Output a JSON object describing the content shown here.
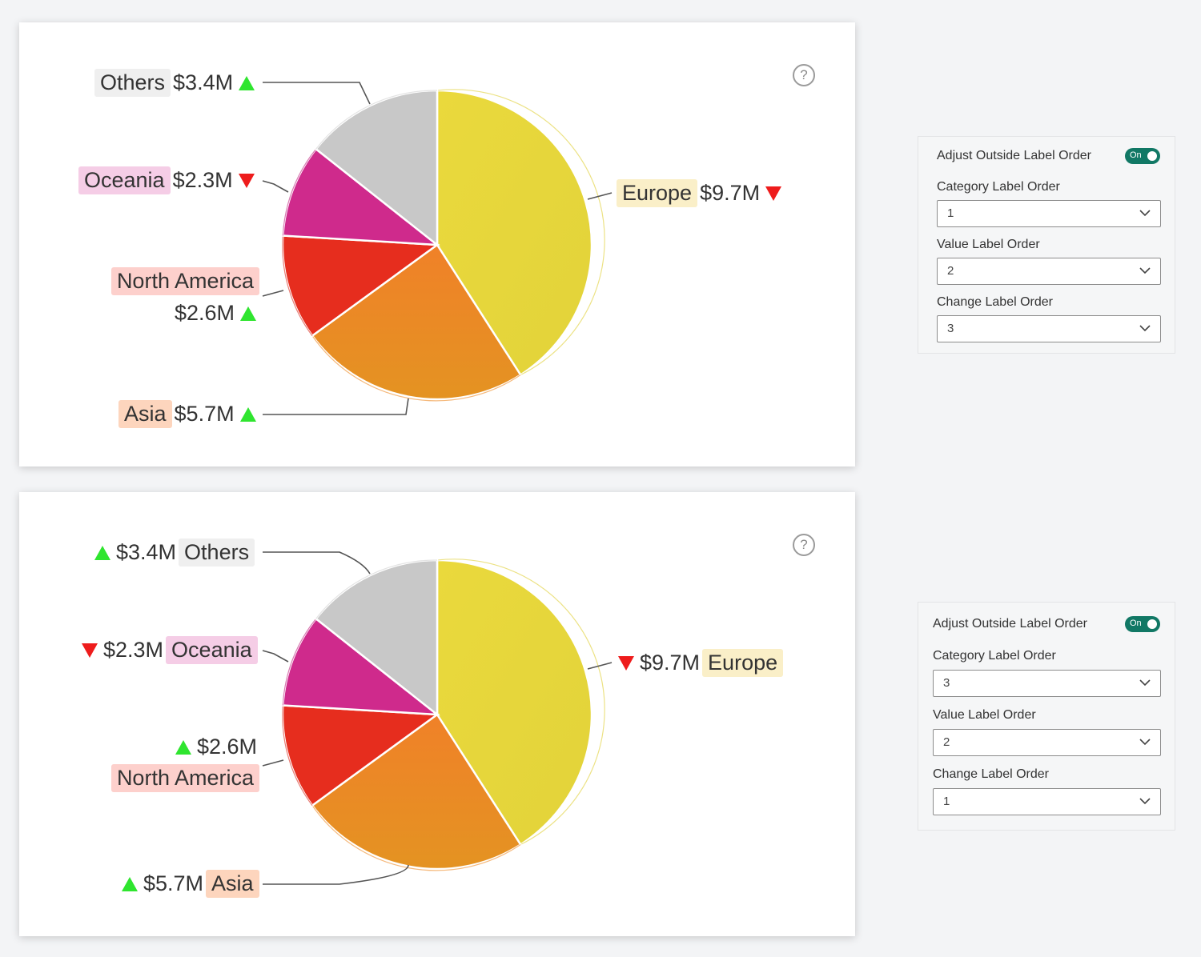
{
  "colors": {
    "europe": "#e6d63a",
    "asia": "#ee8a25",
    "north_america": "#e62d1e",
    "oceania": "#cf2a8c",
    "others": "#c8c8c8",
    "up": "#2fe52f",
    "down": "#ee1c1c",
    "toggle_on": "#117865"
  },
  "icons": {
    "help": "question-circle-icon",
    "dropdown": "chevron-down-icon",
    "up": "triangle-up-icon",
    "down": "triangle-down-icon"
  },
  "help_glyph": "?",
  "chart_data": [
    {
      "type": "pie",
      "categories": [
        "Europe",
        "Asia",
        "North America",
        "Oceania",
        "Others"
      ],
      "values": [
        9.7,
        5.7,
        2.6,
        2.3,
        3.4
      ],
      "value_labels": [
        "$9.7M",
        "$5.7M",
        "$2.6M",
        "$2.3M",
        "$3.4M"
      ],
      "change": [
        "down",
        "up",
        "up",
        "down",
        "up"
      ],
      "label_order": {
        "category": 1,
        "value": 2,
        "change": 3
      }
    },
    {
      "type": "pie",
      "categories": [
        "Europe",
        "Asia",
        "North America",
        "Oceania",
        "Others"
      ],
      "values": [
        9.7,
        5.7,
        2.6,
        2.3,
        3.4
      ],
      "value_labels": [
        "$9.7M",
        "$5.7M",
        "$2.6M",
        "$2.3M",
        "$3.4M"
      ],
      "change": [
        "down",
        "up",
        "up",
        "down",
        "up"
      ],
      "label_order": {
        "category": 3,
        "value": 2,
        "change": 1
      }
    }
  ],
  "format_panels": [
    {
      "title": "Adjust Outside Label Order",
      "toggle": "On",
      "fields": [
        {
          "label": "Category Label Order",
          "value": "1"
        },
        {
          "label": "Value Label Order",
          "value": "2"
        },
        {
          "label": "Change Label Order",
          "value": "3"
        }
      ]
    },
    {
      "title": "Adjust Outside Label Order",
      "toggle": "On",
      "fields": [
        {
          "label": "Category Label Order",
          "value": "3"
        },
        {
          "label": "Value Label Order",
          "value": "2"
        },
        {
          "label": "Change Label Order",
          "value": "1"
        }
      ]
    }
  ]
}
